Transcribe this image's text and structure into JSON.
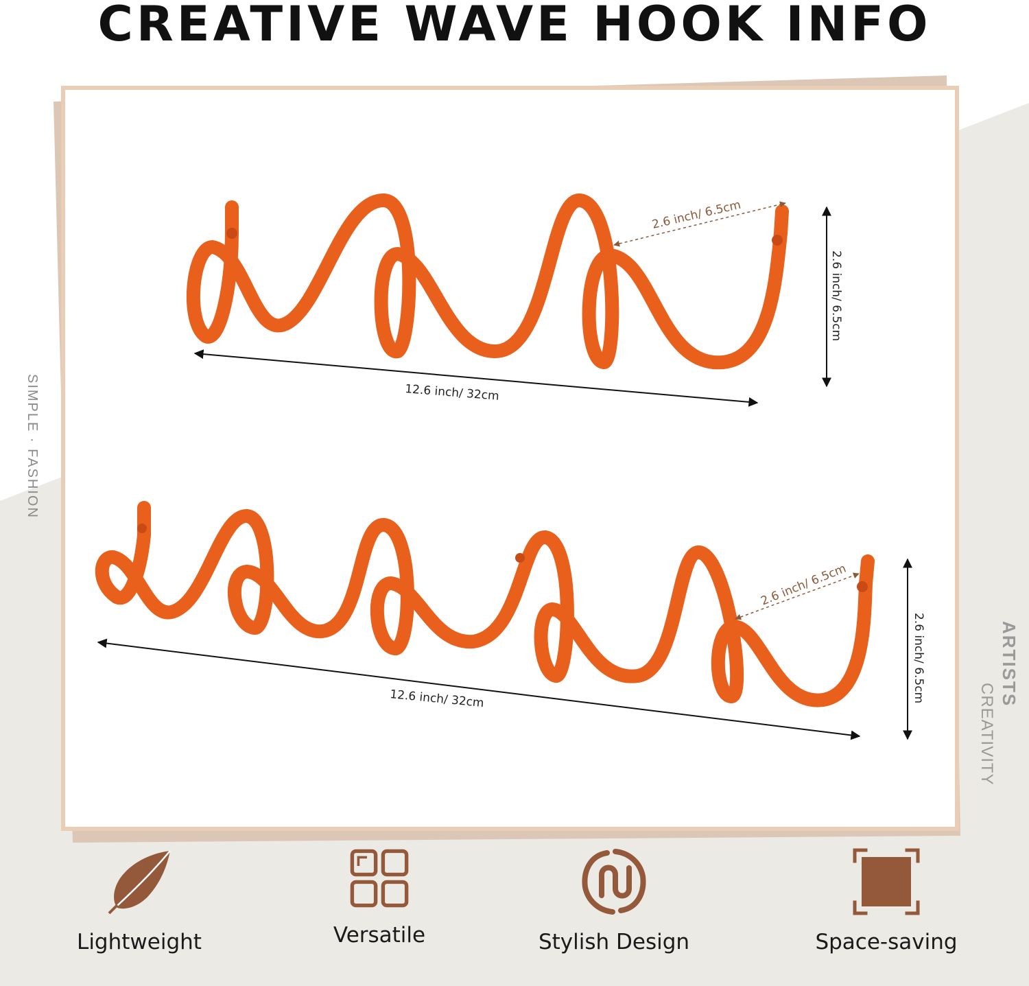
{
  "title": "CREATIVE WAVE HOOK INFO",
  "side_text": {
    "left": "SIMPLE · FASHION",
    "right_top": "ARTISTS",
    "right_bottom": "CREATIVITY"
  },
  "products": [
    {
      "name": "three-hook rack",
      "width_label": "12.6 inch/ 32cm",
      "height_label": "2.6 inch/ 6.5cm",
      "depth_label": "2.6 inch/ 6.5cm"
    },
    {
      "name": "five-hook rack",
      "width_label": "12.6 inch/ 32cm",
      "height_label": "2.6 inch/ 6.5cm",
      "depth_label": "2.6 inch/ 6.5cm"
    }
  ],
  "features": [
    {
      "label": "Lightweight",
      "icon": "feather-icon"
    },
    {
      "label": "Versatile",
      "icon": "grid-icon"
    },
    {
      "label": "Stylish Design",
      "icon": "link-loop-icon"
    },
    {
      "label": "Space-saving",
      "icon": "compact-square-icon"
    }
  ],
  "colors": {
    "hook": "#e8601c",
    "frame": "#e9cdb4",
    "shadow": "#dcc7b6",
    "background_band": "#eceae5",
    "icon_brown": "#93593a"
  }
}
